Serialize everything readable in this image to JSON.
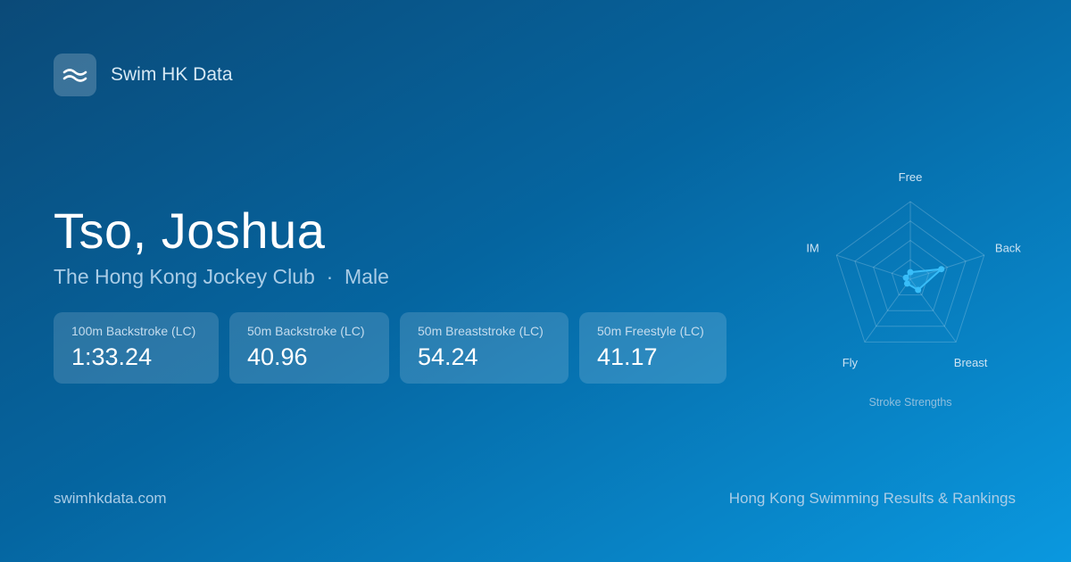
{
  "brand": {
    "name": "Swim HK Data",
    "icon": "waves-icon"
  },
  "athlete": {
    "name": "Tso, Joshua",
    "club": "The Hong Kong Jockey Club",
    "separator": "·",
    "gender": "Male"
  },
  "results": [
    {
      "event": "100m Backstroke (LC)",
      "time": "1:33.24"
    },
    {
      "event": "50m Backstroke (LC)",
      "time": "40.96"
    },
    {
      "event": "50m Breaststroke (LC)",
      "time": "54.24"
    },
    {
      "event": "50m Freestyle (LC)",
      "time": "41.17"
    }
  ],
  "chart_data": {
    "type": "radar",
    "title": "Stroke Strengths",
    "axes": [
      "Free",
      "Back",
      "Breast",
      "Fly",
      "IM"
    ],
    "values": [
      0.09,
      0.42,
      0.17,
      0.07,
      0.06
    ],
    "range": [
      0,
      1
    ],
    "rings": 4,
    "color": "#38bdf8"
  },
  "footer": {
    "site": "swimhkdata.com",
    "tagline": "Hong Kong Swimming Results & Rankings"
  }
}
